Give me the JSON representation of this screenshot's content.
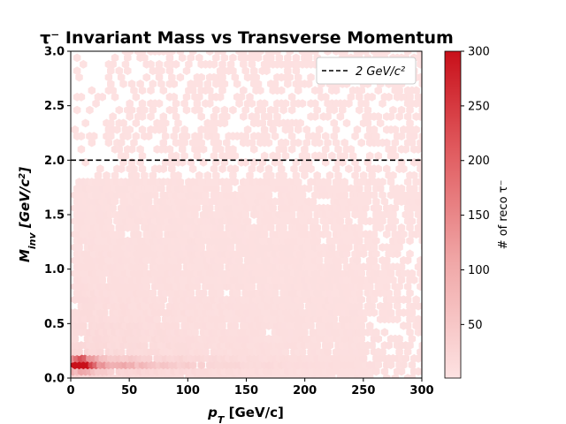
{
  "chart_data": {
    "type": "heatmap",
    "subtype": "hexbin",
    "title": "τ⁻ Invariant Mass vs Transverse Momentum",
    "xlabel": "p_T [GeV/c]",
    "ylabel": "M_inv [GeV/c²]",
    "xlim": [
      0,
      300
    ],
    "ylim": [
      0,
      3.0
    ],
    "xticks": [
      "0",
      "50",
      "100",
      "150",
      "200",
      "250",
      "300"
    ],
    "yticks": [
      "0.0",
      "0.5",
      "1.0",
      "1.5",
      "2.0",
      "2.5",
      "3.0"
    ],
    "grid": false,
    "colorbar": {
      "label": "# of reco τ⁻",
      "range": [
        1,
        300
      ],
      "ticks": [
        "50",
        "100",
        "150",
        "200",
        "250",
        "300"
      ],
      "color_low": "#fde2e2",
      "color_high": "#c8101a"
    },
    "reference_line": {
      "y": 2.0,
      "style": "dashed",
      "color": "#000000",
      "legend_label": "2 GeV/c²"
    },
    "legend_position": "top-right",
    "density_description": [
      {
        "x": 10,
        "y": 0.15,
        "count": 300
      },
      {
        "x": 20,
        "y": 0.12,
        "count": 220
      },
      {
        "x": 30,
        "y": 0.12,
        "count": 160
      },
      {
        "x": 50,
        "y": 0.12,
        "count": 110
      },
      {
        "x": 80,
        "y": 0.12,
        "count": 80
      },
      {
        "x": 120,
        "y": 0.12,
        "count": 50
      },
      {
        "x": 20,
        "y": 0.5,
        "count": 30
      },
      {
        "x": 60,
        "y": 0.8,
        "count": 15
      },
      {
        "x": 150,
        "y": 1.2,
        "count": 8
      },
      {
        "x": 250,
        "y": 2.5,
        "count": 2
      }
    ]
  }
}
